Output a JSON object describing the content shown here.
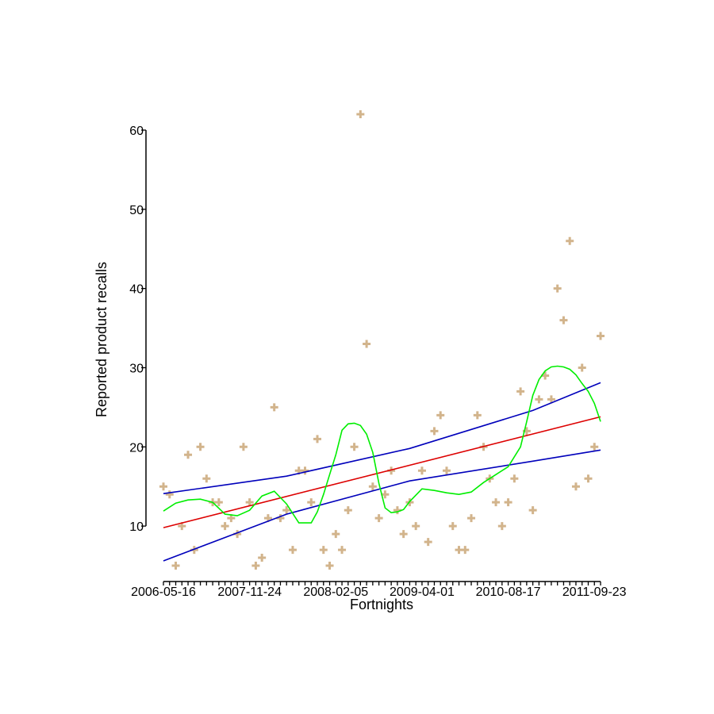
{
  "chart_data": {
    "type": "scatter",
    "title": "",
    "xlabel": "Fortnights",
    "ylabel": "Reported product recalls",
    "x_tick_labels": [
      "2006-05-16",
      "2007-11-24",
      "2008-02-05",
      "2009-04-01",
      "2010-08-17",
      "2011-09-23"
    ],
    "x_tick_positions": [
      0,
      14,
      28,
      42,
      56,
      70
    ],
    "x_minor_tick_count": 72,
    "xlim": [
      0,
      71
    ],
    "y_ticks": [
      10,
      20,
      30,
      40,
      50,
      60
    ],
    "ylim": [
      3,
      60
    ],
    "grid": false,
    "legend": "none",
    "colors": {
      "points": "#d2b48c",
      "fit": "#dd0000",
      "confidence_band": "#0000bb",
      "smooth": "#00ee00"
    },
    "points": {
      "marker": "plus",
      "y": [
        15,
        14,
        5,
        10,
        19,
        7,
        20,
        16,
        13,
        13,
        10,
        11,
        9,
        20,
        13,
        5,
        6,
        11,
        25,
        11,
        12,
        7,
        17,
        17,
        13,
        21,
        7,
        5,
        9,
        7,
        12,
        20,
        62,
        33,
        15,
        11,
        14,
        17,
        12,
        9,
        13,
        10,
        17,
        8,
        22,
        24,
        17,
        10,
        7,
        7,
        11,
        24,
        20,
        16,
        13,
        10,
        13,
        16,
        27,
        22,
        12,
        26,
        29,
        26,
        40,
        36,
        46,
        15,
        30,
        16,
        20,
        34
      ]
    },
    "linear_fit": {
      "x": [
        0,
        71
      ],
      "y": [
        9.8,
        23.8
      ]
    },
    "confidence_band_upper": {
      "x": [
        0,
        20,
        40,
        60,
        71
      ],
      "y": [
        14.1,
        16.3,
        19.8,
        24.6,
        28.1
      ]
    },
    "confidence_band_lower": {
      "x": [
        0,
        20,
        40,
        60,
        71
      ],
      "y": [
        5.6,
        11.5,
        15.7,
        18.2,
        19.6
      ]
    },
    "smooth": {
      "x": [
        0,
        2,
        4,
        6,
        8,
        10,
        12,
        14,
        16,
        18,
        20,
        22,
        24,
        25,
        26,
        27,
        28,
        29,
        30,
        31,
        32,
        33,
        34,
        35,
        36,
        37,
        38,
        39,
        40,
        42,
        44,
        46,
        48,
        50,
        52,
        54,
        56,
        58,
        59,
        60,
        61,
        62,
        63,
        64,
        65,
        66,
        67,
        68,
        69,
        70,
        71
      ],
      "y": [
        11.9,
        12.9,
        13.3,
        13.4,
        13.0,
        11.5,
        11.3,
        12.0,
        13.8,
        14.4,
        12.8,
        10.4,
        10.4,
        11.8,
        14.0,
        16.5,
        19.0,
        22.1,
        22.9,
        23.0,
        22.7,
        21.6,
        19.3,
        15.4,
        12.3,
        11.7,
        11.8,
        12.1,
        13.1,
        14.7,
        14.5,
        14.2,
        14.0,
        14.3,
        15.5,
        16.5,
        17.5,
        20.0,
        23.2,
        26.5,
        28.5,
        29.6,
        30.1,
        30.2,
        30.1,
        29.8,
        29.1,
        28.0,
        27.0,
        25.5,
        23.2
      ]
    }
  }
}
